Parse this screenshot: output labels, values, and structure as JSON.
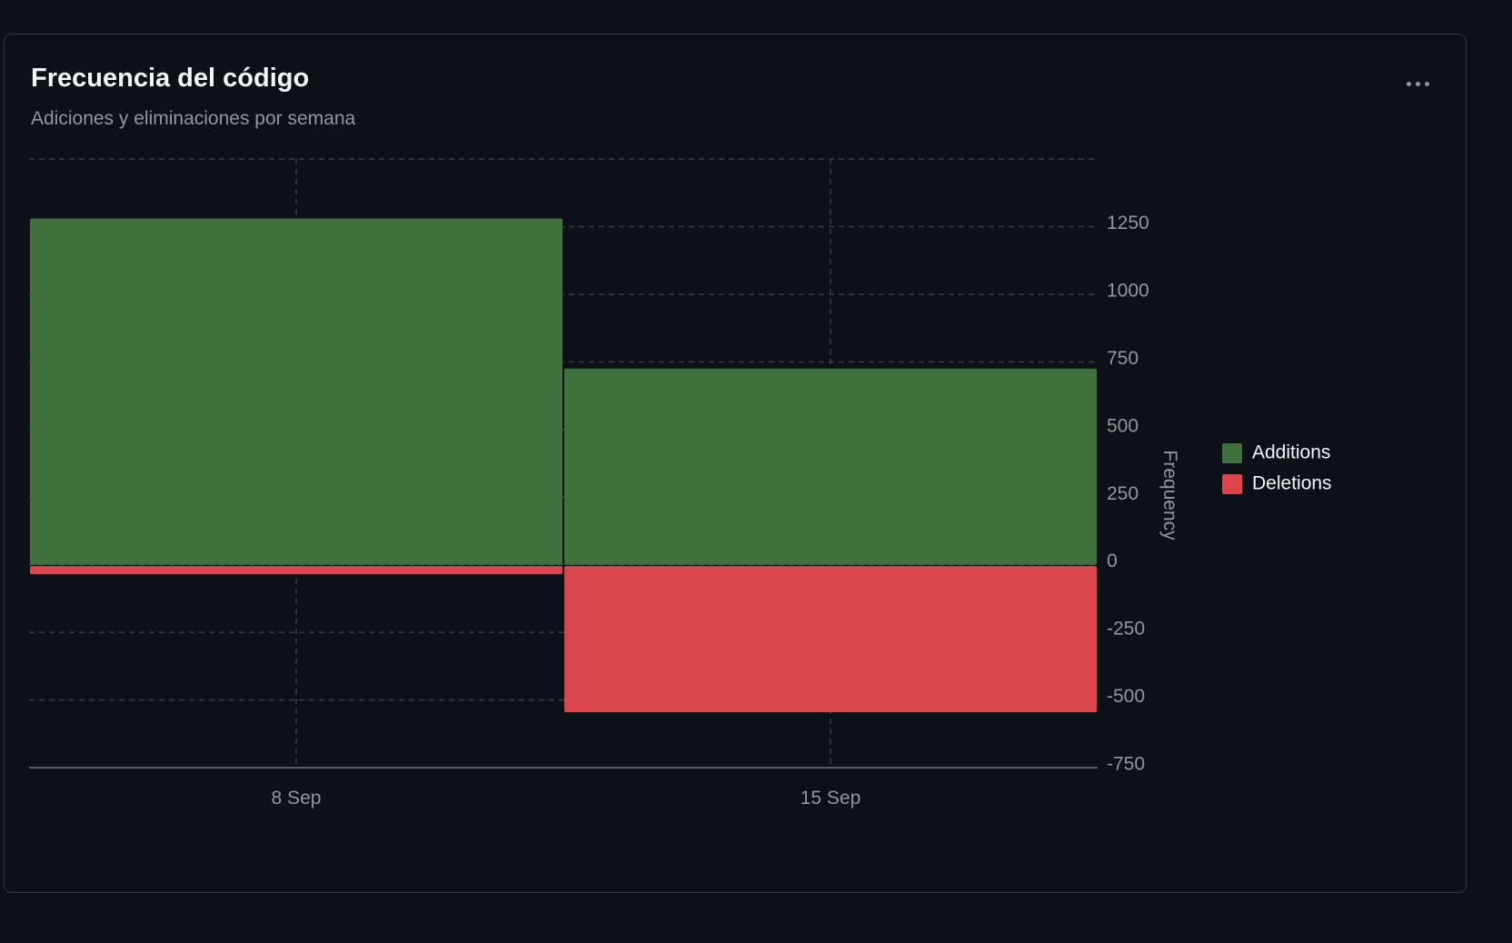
{
  "card": {
    "title": "Frecuencia del código",
    "subtitle": "Adiciones y eliminaciones por semana",
    "menu_icon": "kebab-horizontal-icon"
  },
  "colors": {
    "additions": "#40703c",
    "deletions": "#da454c",
    "grid": "#3a3f46",
    "text_muted": "#9198a1",
    "text_primary": "#f0f6fc"
  },
  "chart_data": {
    "type": "bar",
    "stacked": true,
    "categories": [
      "8 Sep",
      "15 Sep"
    ],
    "series": [
      {
        "name": "Additions",
        "values": [
          1280,
          725
        ]
      },
      {
        "name": "Deletions",
        "values": [
          -30,
          -540
        ]
      }
    ],
    "ylabel": "Frequency",
    "ylim": [
      -750,
      1500
    ],
    "yticks": [
      1250,
      1000,
      750,
      500,
      250,
      0,
      -250,
      -500,
      -750
    ],
    "grid": true,
    "y_axis_position": "right",
    "legend_position": "right"
  }
}
